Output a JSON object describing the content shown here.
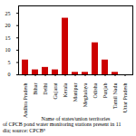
{
  "chart_data": {
    "type": "bar",
    "categories": [
      "Andhra Pradesh",
      "Bihar",
      "Delhi",
      "Gujarat",
      "Kerala",
      "Manipur",
      "Meghalaya",
      "Odisha",
      "Punjab",
      "Tamil Nadu",
      "Uttar Pradesh"
    ],
    "values": [
      6,
      2,
      3,
      2,
      23,
      1,
      1,
      13,
      6,
      1,
      0
    ],
    "color": "#cc0000",
    "xlabel": "Name of states/union territories",
    "ylim": [
      0,
      28
    ],
    "yticks": [
      0,
      5,
      10,
      15,
      20,
      25
    ],
    "grid": false,
    "annotations": [
      "of CPCB pond water monitoring stations present in 11",
      "dia; source: CPCB⁹"
    ]
  }
}
